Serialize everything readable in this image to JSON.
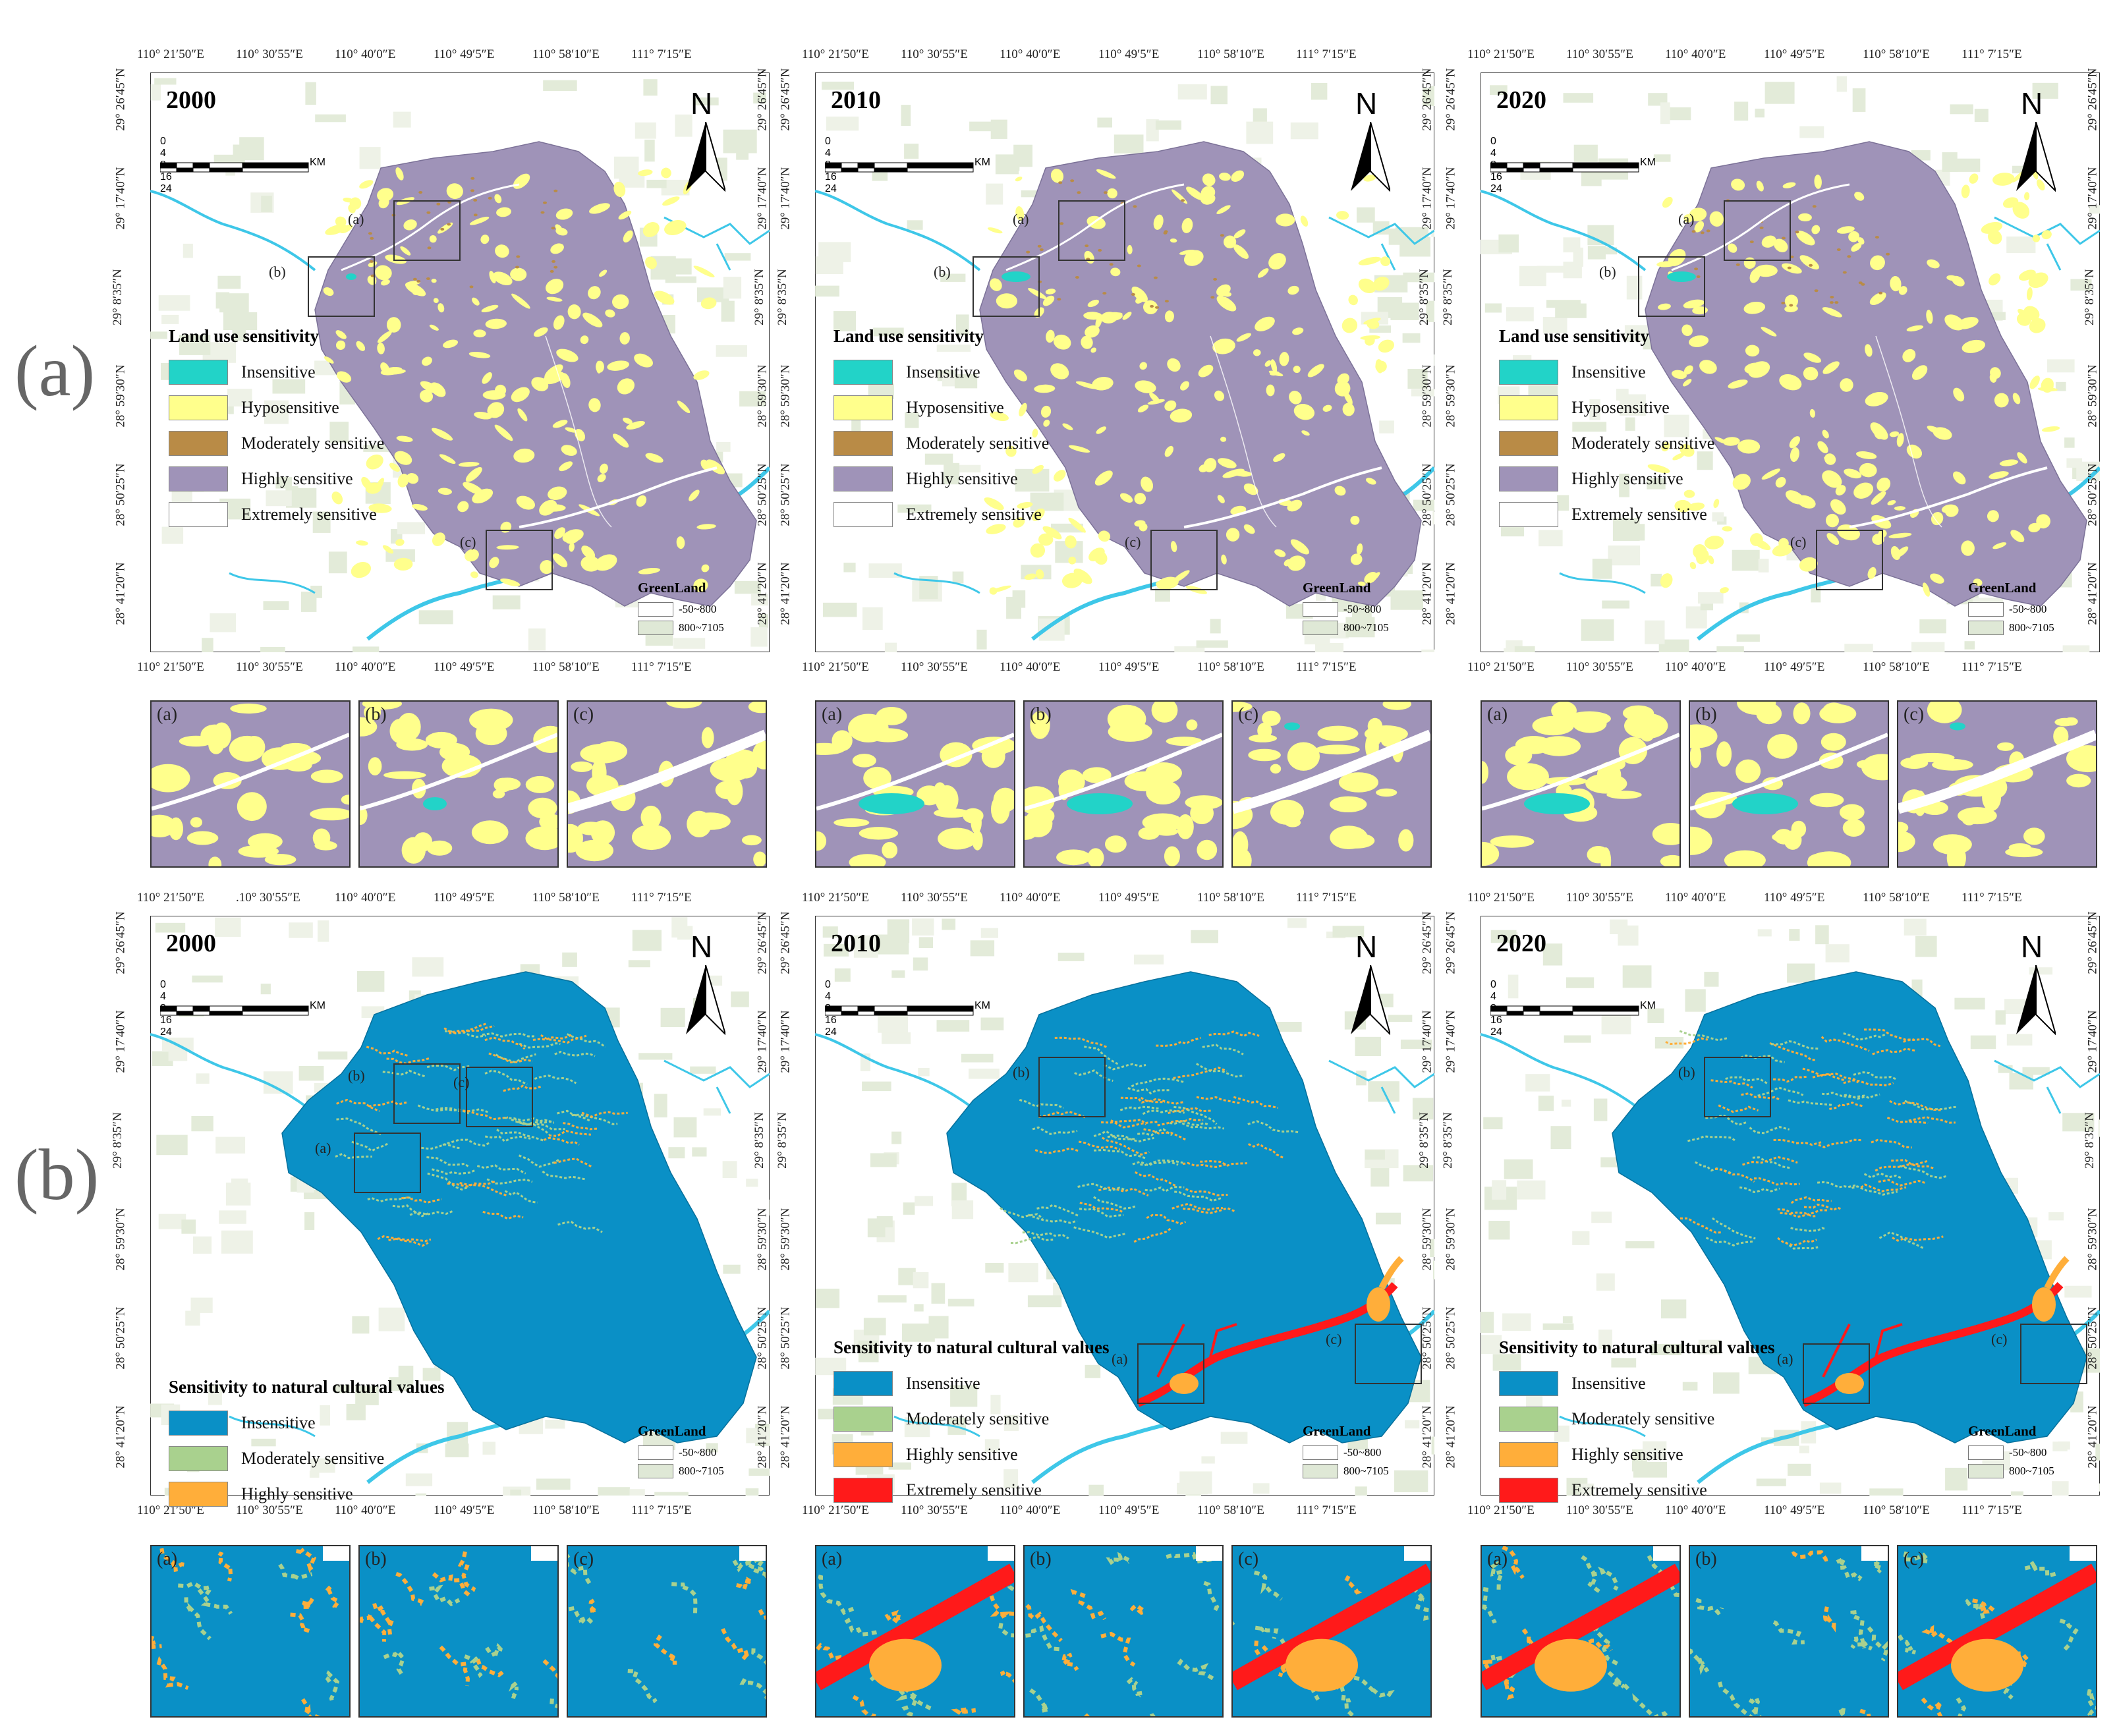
{
  "row_labels": [
    "(a)",
    "(b)"
  ],
  "years": [
    "2000",
    "2010",
    "2020"
  ],
  "north_label": "N",
  "scale": {
    "ticks": [
      "0",
      "4",
      "8",
      "16",
      "24"
    ],
    "unit": "KM"
  },
  "axes": {
    "top_a": [
      "110° 21′50″E",
      "110° 30′55″E",
      "110° 40′0″E",
      "110° 49′5″E",
      "110° 58′10″E",
      "111° 7′15″E"
    ],
    "top_b0": [
      "110° 21′50″E",
      ".10° 30′55″E",
      "110° 40′0″E",
      "110° 49′5″E",
      "110° 58′10″E",
      "111° 7′15″E"
    ],
    "bottom": [
      "110° 21′50″E",
      "110° 30′55″E",
      "110° 40′0″E",
      "110° 49′5″E",
      "110° 58′10″E",
      "111° 7′15″E"
    ],
    "left": [
      "29° 26′45″N",
      "29° 17′40″N",
      "29° 8′35″N",
      "28° 59′30″N",
      "28° 50′25″N",
      "28° 41′20″N"
    ],
    "right": [
      "29° 26′45″N",
      "29° 17′40″N",
      "29° 8′35″N",
      "28° 59′30″N",
      "28° 50′25″N",
      "28° 41′20″N"
    ]
  },
  "zoom_labels": [
    "(a)",
    "(b)",
    "(c)"
  ],
  "greenland": {
    "title": "GreenLand",
    "classes": [
      "-50~800",
      "800~7105"
    ],
    "colors": [
      "#ffffff",
      "#dfe8d6"
    ]
  },
  "legend_a": {
    "title": "Land use sensitivity",
    "items": [
      {
        "label": "Insensitive",
        "color": "#22d3c8"
      },
      {
        "label": "Hyposensitive",
        "color": "#ffff8c"
      },
      {
        "label": "Moderately sensitive",
        "color": "#b98b46"
      },
      {
        "label": "Highly sensitive",
        "color": "#9f93b8"
      },
      {
        "label": "Extremely sensitive",
        "color": "#ffffff"
      }
    ]
  },
  "legend_b": {
    "title": "Sensitivity to natural cultural values",
    "items": [
      {
        "label": "Insensitive",
        "color": "#0a90c6"
      },
      {
        "label": "Moderately sensitive",
        "color": "#a9d18e"
      },
      {
        "label": "Highly sensitive",
        "color": "#ffae3a"
      },
      {
        "label": "Extremely sensitive",
        "color": "#ff1a1a"
      }
    ]
  },
  "colors": {
    "river": "#3ec7e8",
    "purple": "#9f93b8",
    "blue": "#0a90c6",
    "yellow": "#ffff8c",
    "cyan": "#22d3c8",
    "orange": "#ffae3a",
    "red": "#ff1a1a",
    "green": "#a9d18e"
  }
}
